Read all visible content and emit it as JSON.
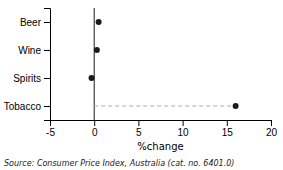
{
  "chart_data": {
    "type": "dot",
    "orientation": "horizontal",
    "categories": [
      "Beer",
      "Wine",
      "Spirits",
      "Tobacco"
    ],
    "values": [
      0.5,
      0.3,
      -0.3,
      16.0
    ],
    "color": "#1a1a1a",
    "xlabel": "%change",
    "xlim": [
      -5,
      20
    ],
    "xticks": [
      -5,
      0,
      5,
      10,
      15,
      20
    ],
    "annotation": "Source: Consumer Price Index, Australia (cat.  no.  6401.0)"
  }
}
